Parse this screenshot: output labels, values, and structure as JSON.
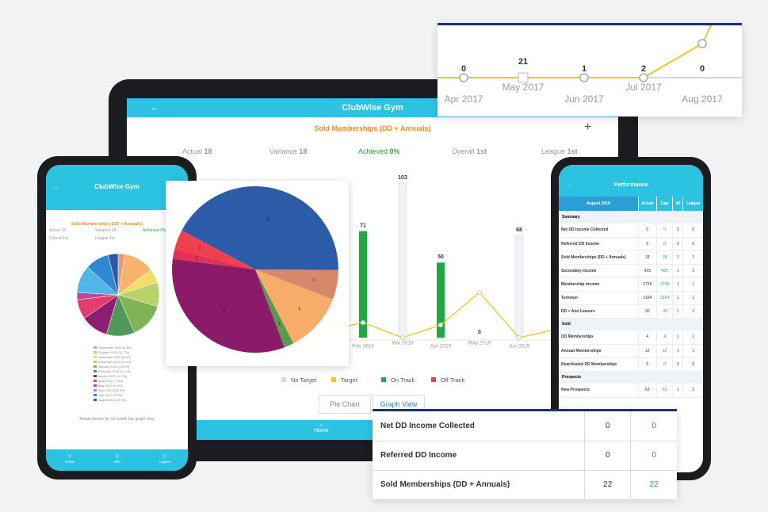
{
  "tablet": {
    "header": "ClubWise Gym",
    "title": "Sold Memberships (DD + Annuals)",
    "plus": "+",
    "stats": [
      {
        "label": "Actual",
        "value": "18"
      },
      {
        "label": "Variance",
        "value": "18"
      },
      {
        "label": "Achieved",
        "value": "0%"
      },
      {
        "label": "Overall",
        "value": "1st"
      },
      {
        "label": "League",
        "value": "1st"
      }
    ],
    "chart": {
      "bars": [
        {
          "value": 71,
          "color": "#22a843"
        },
        {
          "value": 103,
          "color": "#f1f2f6"
        },
        {
          "value": 50,
          "color": "#22a843"
        },
        {
          "value": 0,
          "color": "#22a843"
        },
        {
          "value": 68,
          "color": "#f1f2f6"
        }
      ],
      "x_labels": [
        "Feb 2019",
        "Mar 2019",
        "Apr 2019",
        "May 2019",
        "Jun 2019"
      ],
      "legend": [
        {
          "name": "No Target",
          "color": "#d8dbe2"
        },
        {
          "name": "Target",
          "color": "#f5c518"
        },
        {
          "name": "On Track",
          "color": "#22a843"
        },
        {
          "name": "Off Track",
          "color": "#e8404c"
        }
      ]
    },
    "tabs": [
      "Pie Chart",
      "Graph View"
    ],
    "nav": [
      "Home"
    ]
  },
  "left_phone": {
    "header": "ClubWise Gym",
    "title": "Sold Memberships (DD + Annuals)",
    "stats": [
      {
        "label": "Actual",
        "value": "18"
      },
      {
        "label": "Variance",
        "value": "18"
      },
      {
        "label": "Achieved",
        "value": "0%"
      },
      {
        "label": "Overall",
        "value": "1st"
      },
      {
        "label": "League",
        "value": "1st"
      }
    ],
    "pie": [
      {
        "label": "September 2018 (2.8%)",
        "value": 2.8,
        "color": "#e59a74"
      },
      {
        "label": "October 2018 (11.7%)",
        "value": 11.7,
        "color": "#f7b26b"
      },
      {
        "label": "November 2018 (5.6%)",
        "value": 5.6,
        "color": "#f3dc6a"
      },
      {
        "label": "December 2018 (9.5%)",
        "value": 9.5,
        "color": "#b9d26a"
      },
      {
        "label": "January 2019 (13.9%)",
        "value": 13.9,
        "color": "#7fb356"
      },
      {
        "label": "February 2019 (11.1%)",
        "value": 11.1,
        "color": "#4f9a5a"
      },
      {
        "label": "March 2019 (10.7%)",
        "value": 10.7,
        "color": "#8b1e6e"
      },
      {
        "label": "April 2019 (7.8%)",
        "value": 7.8,
        "color": "#e23d6d"
      },
      {
        "label": "May 2019 (2.8%)",
        "value": 2.8,
        "color": "#b54aa5"
      },
      {
        "label": "June 2019 (10.9%)",
        "value": 10.9,
        "color": "#4fb6e8"
      },
      {
        "label": "July 2019 (9.3%)",
        "value": 9.3,
        "color": "#2e87d0"
      },
      {
        "label": "August 2019 (3.9%)",
        "value": 3.9,
        "color": "#2a5aa8"
      }
    ],
    "note": "Rotate device for 12 month bar graph view",
    "nav": [
      "Home",
      "Info",
      "Logout"
    ]
  },
  "pie_card": {
    "slices": [
      {
        "value": 22,
        "color": "#2c5ba8"
      },
      {
        "value": 3,
        "color": "#d9876a"
      },
      {
        "value": 6,
        "color": "#f7ac6a"
      },
      {
        "value": 1,
        "color": "#5a9a50"
      },
      {
        "value": 17,
        "color": "#8b1a68"
      },
      {
        "value": 1,
        "color": "#e23058"
      },
      {
        "value": 2,
        "color": "#ef4050"
      }
    ]
  },
  "line_card": {
    "points": [
      {
        "month": "Apr 2017",
        "label": "0"
      },
      {
        "month": "May 2017",
        "label": "21"
      },
      {
        "month": "Jun 2017",
        "label": "1"
      },
      {
        "month": "Jul 2017",
        "label": "2"
      },
      {
        "month": "Aug 2017",
        "label": "0"
      }
    ]
  },
  "right_phone": {
    "header": "Performance",
    "month": "August 2019",
    "columns": [
      "Actual",
      "Gap",
      "All",
      "League"
    ],
    "sections": [
      {
        "title": "Summary",
        "rows": [
          [
            "Net DD Income Collected",
            "0",
            "0",
            "0",
            "0"
          ],
          [
            "Referred DD Income",
            "0",
            "0",
            "0",
            "0"
          ],
          [
            "Sold Memberships (DD + Annuals)",
            "18",
            "18",
            "1",
            "1"
          ],
          [
            "Secondary income",
            "425",
            "425",
            "1",
            "1"
          ],
          [
            "Membership income",
            "2739",
            "2739",
            "1",
            "1"
          ],
          [
            "Turnover",
            "3164",
            "3164",
            "1",
            "1"
          ],
          [
            "DD + Ann Leavers",
            "30",
            "-30",
            "1",
            "1"
          ]
        ]
      },
      {
        "title": "Sold",
        "rows": [
          [
            "DD Memberships",
            "4",
            "4",
            "1",
            "1"
          ],
          [
            "Annual Memberships",
            "12",
            "12",
            "1",
            "1"
          ],
          [
            "Reactivated DD Memberships",
            "0",
            "0",
            "0",
            "0"
          ]
        ]
      },
      {
        "title": "Prospects",
        "rows": [
          [
            "New Prospects",
            "63",
            "63",
            "1",
            "1"
          ]
        ]
      }
    ]
  },
  "bottom_table": {
    "rows": [
      [
        "Net DD Income Collected",
        "0",
        "0"
      ],
      [
        "Referred DD Income",
        "0",
        "0"
      ],
      [
        "Sold Memberships (DD + Annuals)",
        "22",
        "22"
      ]
    ]
  }
}
